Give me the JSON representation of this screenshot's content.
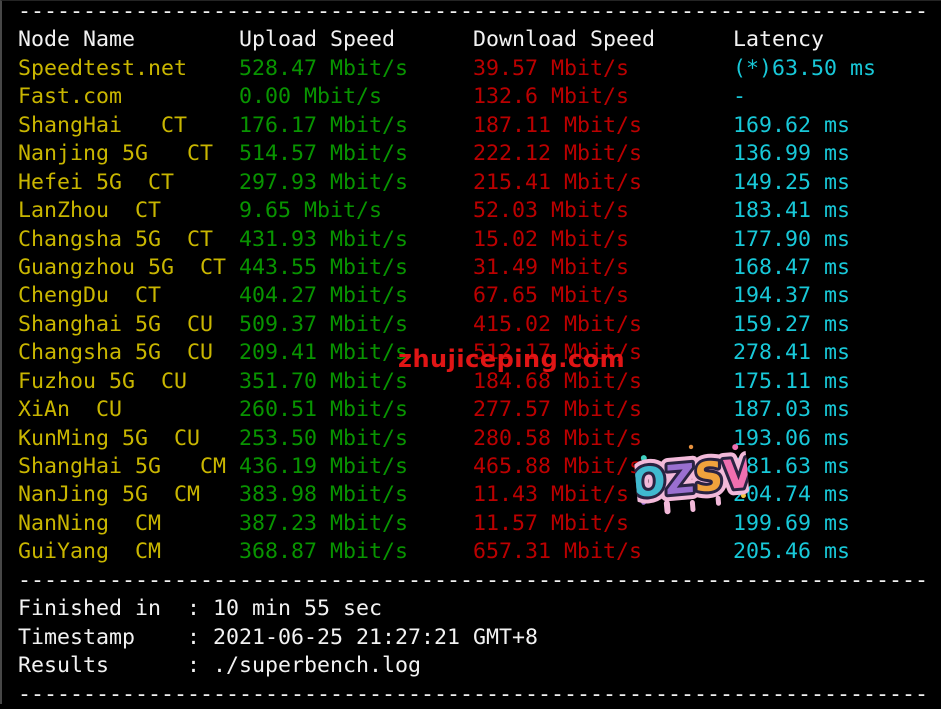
{
  "colors": {
    "background": "#000000",
    "foreground": "#f2f2f2",
    "node_name": "#c9b600",
    "upload": "#089400",
    "download": "#bb0000",
    "latency": "#18c8d8",
    "watermark_red": "#e01515",
    "graffiti_outline": "#f2b9d9",
    "graffiti_dark_outline": "#2a2342"
  },
  "divider": "----------------------------------------------------------------------",
  "table": {
    "headers": {
      "node": "Node Name",
      "upload": "Upload Speed",
      "download": "Download Speed",
      "latency": "Latency"
    },
    "rows": [
      {
        "name": "Speedtest.net",
        "upload": "528.47 Mbit/s",
        "download": "39.57 Mbit/s",
        "latency": "(*)63.50 ms"
      },
      {
        "name": "Fast.com",
        "upload": "0.00 Mbit/s",
        "download": "132.6 Mbit/s",
        "latency": "-"
      },
      {
        "name": "ShangHai   CT",
        "upload": "176.17 Mbit/s",
        "download": "187.11 Mbit/s",
        "latency": "169.62 ms"
      },
      {
        "name": "Nanjing 5G   CT",
        "upload": "514.57 Mbit/s",
        "download": "222.12 Mbit/s",
        "latency": "136.99 ms"
      },
      {
        "name": "Hefei 5G  CT",
        "upload": "297.93 Mbit/s",
        "download": "215.41 Mbit/s",
        "latency": "149.25 ms"
      },
      {
        "name": "LanZhou  CT",
        "upload": "9.65 Mbit/s",
        "download": "52.03 Mbit/s",
        "latency": "183.41 ms"
      },
      {
        "name": "Changsha 5G  CT",
        "upload": "431.93 Mbit/s",
        "download": "15.02 Mbit/s",
        "latency": "177.90 ms"
      },
      {
        "name": "Guangzhou 5G  CT",
        "upload": "443.55 Mbit/s",
        "download": "31.49 Mbit/s",
        "latency": "168.47 ms"
      },
      {
        "name": "ChengDu  CT",
        "upload": "404.27 Mbit/s",
        "download": "67.65 Mbit/s",
        "latency": "194.37 ms"
      },
      {
        "name": "Shanghai 5G  CU",
        "upload": "509.37 Mbit/s",
        "download": "415.02 Mbit/s",
        "latency": "159.27 ms"
      },
      {
        "name": "Changsha 5G  CU",
        "upload": "209.41 Mbit/s",
        "download": "512.17 Mbit/s",
        "latency": "278.41 ms"
      },
      {
        "name": "Fuzhou 5G  CU",
        "upload": "351.70 Mbit/s",
        "download": "184.68 Mbit/s",
        "latency": "175.11 ms"
      },
      {
        "name": "XiAn  CU",
        "upload": "260.51 Mbit/s",
        "download": "277.57 Mbit/s",
        "latency": "187.03 ms"
      },
      {
        "name": "KunMing 5G  CU",
        "upload": "253.50 Mbit/s",
        "download": "280.58 Mbit/s",
        "latency": "193.06 ms"
      },
      {
        "name": "ShangHai 5G   CM",
        "upload": "436.19 Mbit/s",
        "download": "465.88 Mbit/s",
        "latency": "181.63 ms"
      },
      {
        "name": "NanJing 5G  CM",
        "upload": "383.98 Mbit/s",
        "download": "11.43 Mbit/s",
        "latency": "204.74 ms"
      },
      {
        "name": "NanNing  CM",
        "upload": "387.23 Mbit/s",
        "download": "11.57 Mbit/s",
        "latency": "199.69 ms"
      },
      {
        "name": "GuiYang  CM",
        "upload": "368.87 Mbit/s",
        "download": "657.31 Mbit/s",
        "latency": "205.46 ms"
      }
    ]
  },
  "summary": [
    {
      "label": "Finished in",
      "value": "10 min 55 sec"
    },
    {
      "label": "Timestamp",
      "value": "2021-06-25 21:27:21 GMT+8"
    },
    {
      "label": "Results",
      "value": "./superbench.log"
    }
  ],
  "watermarks": {
    "site_text": "zhujiceping.com",
    "graffiti_text": "OZSV",
    "graffiti_letter_colors": [
      "#3fb9cf",
      "#9a6fd0",
      "#f0a23c",
      "#ef6fb0"
    ]
  }
}
